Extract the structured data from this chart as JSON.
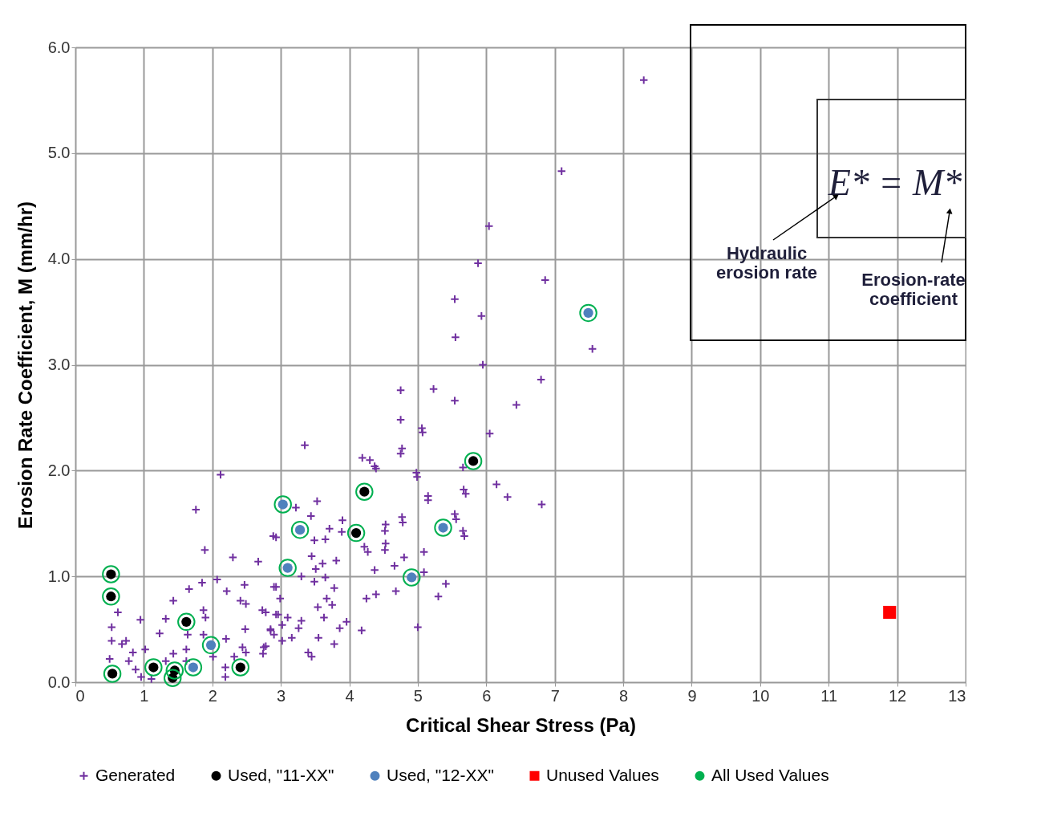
{
  "chart_data": {
    "type": "scatter",
    "xlabel": "Critical Shear Stress (Pa)",
    "ylabel": "Erosion Rate Coefficient, M (mm/hr)",
    "xlim": [
      0,
      13
    ],
    "xticks": [
      0,
      1,
      2,
      3,
      4,
      5,
      6,
      7,
      8,
      9,
      10,
      11,
      12,
      13
    ],
    "ylim": [
      0,
      6
    ],
    "yticks": [
      {
        "value": 0,
        "label": "0.0"
      },
      {
        "value": 1,
        "label": "1.0"
      },
      {
        "value": 2,
        "label": "2.0"
      },
      {
        "value": 3,
        "label": "3.0"
      },
      {
        "value": 4,
        "label": "4.0"
      },
      {
        "value": 5,
        "label": "5.0"
      },
      {
        "value": 6,
        "label": "6.0"
      }
    ],
    "grid": true,
    "legend": "bottom",
    "annotations": [
      "E* = M*",
      "Hydraulic\nerosion rate",
      "Erosion-rate\ncoefficient"
    ],
    "series": [
      {
        "name": "Generated",
        "color": "#7030a0",
        "marker": "cross",
        "x": [
          8.3,
          7.1,
          6.04,
          5.88,
          6.86,
          5.54,
          5.93,
          5.55,
          7.55,
          5.95,
          6.8,
          4.75,
          5.23,
          5.54,
          6.44,
          4.75,
          5.07,
          6.05,
          4.75,
          4.39,
          4.99,
          5.66,
          6.15,
          5.15,
          5.7,
          6.31,
          6.81,
          4.78,
          5.56,
          4.52,
          5.68,
          4.52,
          5.06,
          3.35,
          4.77,
          4.19,
          4.3,
          4.37,
          4.98,
          5.67,
          5.15,
          3.53,
          3.22,
          3.44,
          5.54,
          4.77,
          3.9,
          4.53,
          3.71,
          3.89,
          5.66,
          2.93,
          3.49,
          3.65,
          4.53,
          4.22,
          4.27,
          5.09,
          3.45,
          4.8,
          3.81,
          4.66,
          3.61,
          5.09,
          4.37,
          3.51,
          3.3,
          3.65,
          3.49,
          5.41,
          5.3,
          2.93,
          3.78,
          4.68,
          4.39,
          4.25,
          2.99,
          3.67,
          3.54,
          3.75,
          2.78,
          2.96,
          3.1,
          3.3,
          3.63,
          3.96,
          3.26,
          3.86,
          5.0,
          2.85,
          3.02,
          4.18,
          2.9,
          3.16,
          3.55,
          3.78,
          2.75,
          3.4,
          3.45,
          3.02,
          2.12,
          1.76,
          2.89,
          1.89,
          2.3,
          2.67,
          1.85,
          2.07,
          1.66,
          2.21,
          2.47,
          2.9,
          1.43,
          2.41,
          2.49,
          0.62,
          2.73,
          2.93,
          0.95,
          1.32,
          1.87,
          1.9,
          0.53,
          1.23,
          1.64,
          2.48,
          2.85,
          1.87,
          0.53,
          2.2,
          0.68,
          0.74,
          0.84,
          1.02,
          2.44,
          2.78,
          0.5,
          0.78,
          1.43,
          1.62,
          2.01,
          2.32,
          2.49,
          2.74,
          0.88,
          1.32,
          1.62,
          0.96,
          1.11,
          2.19,
          2.19
        ],
        "values": [
          5.69,
          4.83,
          4.31,
          3.96,
          3.8,
          3.62,
          3.46,
          3.26,
          3.15,
          3.0,
          2.86,
          2.76,
          2.77,
          2.66,
          2.62,
          2.48,
          2.36,
          2.35,
          2.16,
          2.02,
          1.94,
          2.03,
          1.87,
          1.72,
          1.78,
          1.75,
          1.68,
          1.51,
          1.54,
          1.43,
          1.38,
          1.25,
          2.4,
          2.24,
          2.21,
          2.12,
          2.1,
          2.04,
          1.98,
          1.82,
          1.76,
          1.71,
          1.65,
          1.57,
          1.59,
          1.56,
          1.53,
          1.49,
          1.45,
          1.42,
          1.43,
          1.37,
          1.34,
          1.35,
          1.31,
          1.28,
          1.23,
          1.23,
          1.19,
          1.18,
          1.15,
          1.1,
          1.12,
          1.04,
          1.06,
          1.07,
          1.0,
          0.99,
          0.95,
          0.93,
          0.81,
          0.9,
          0.89,
          0.86,
          0.83,
          0.79,
          0.79,
          0.79,
          0.71,
          0.73,
          0.66,
          0.64,
          0.61,
          0.58,
          0.61,
          0.57,
          0.51,
          0.51,
          0.52,
          0.5,
          0.54,
          0.49,
          0.45,
          0.42,
          0.42,
          0.36,
          0.33,
          0.28,
          0.24,
          0.39,
          1.96,
          1.63,
          1.38,
          1.25,
          1.18,
          1.14,
          0.94,
          0.97,
          0.88,
          0.86,
          0.92,
          0.9,
          0.77,
          0.77,
          0.74,
          0.66,
          0.68,
          0.64,
          0.59,
          0.6,
          0.68,
          0.61,
          0.52,
          0.46,
          0.45,
          0.5,
          0.49,
          0.45,
          0.39,
          0.41,
          0.36,
          0.39,
          0.28,
          0.31,
          0.33,
          0.34,
          0.22,
          0.2,
          0.27,
          0.31,
          0.24,
          0.24,
          0.28,
          0.27,
          0.12,
          0.2,
          0.2,
          0.05,
          0.03,
          0.14,
          0.05
        ]
      },
      {
        "name": "Used, \"11-XX\"",
        "color": "#000000",
        "marker": "circle",
        "x": [
          0.52,
          0.52,
          1.62,
          0.54,
          1.14,
          1.45,
          1.42,
          2.41,
          4.1,
          4.22,
          5.81
        ],
        "values": [
          1.02,
          0.81,
          0.57,
          0.08,
          0.14,
          0.11,
          0.04,
          0.14,
          1.41,
          1.8,
          2.09
        ]
      },
      {
        "name": "Used, \"12-XX\"",
        "color": "#4f81bd",
        "marker": "circle",
        "x": [
          3.03,
          3.28,
          3.1,
          1.98,
          1.72,
          4.91,
          5.37,
          7.49
        ],
        "values": [
          1.68,
          1.44,
          1.08,
          0.35,
          0.14,
          0.99,
          1.46,
          3.49
        ]
      },
      {
        "name": "Unused Values",
        "color": "#ff0000",
        "marker": "square",
        "x": [
          11.89
        ],
        "values": [
          0.66
        ]
      },
      {
        "name": "All Used Values",
        "color": "#00b050",
        "marker": "circle",
        "x": [
          0.52,
          0.52,
          1.62,
          0.54,
          1.14,
          1.45,
          1.42,
          2.41,
          4.1,
          4.22,
          5.81,
          3.03,
          3.28,
          3.1,
          1.98,
          1.72,
          4.91,
          5.37,
          7.49
        ],
        "values": [
          1.02,
          0.81,
          0.57,
          0.08,
          0.14,
          0.11,
          0.04,
          0.14,
          1.41,
          1.8,
          2.09,
          1.68,
          1.44,
          1.08,
          0.35,
          0.14,
          0.99,
          1.46,
          3.49
        ]
      }
    ]
  }
}
